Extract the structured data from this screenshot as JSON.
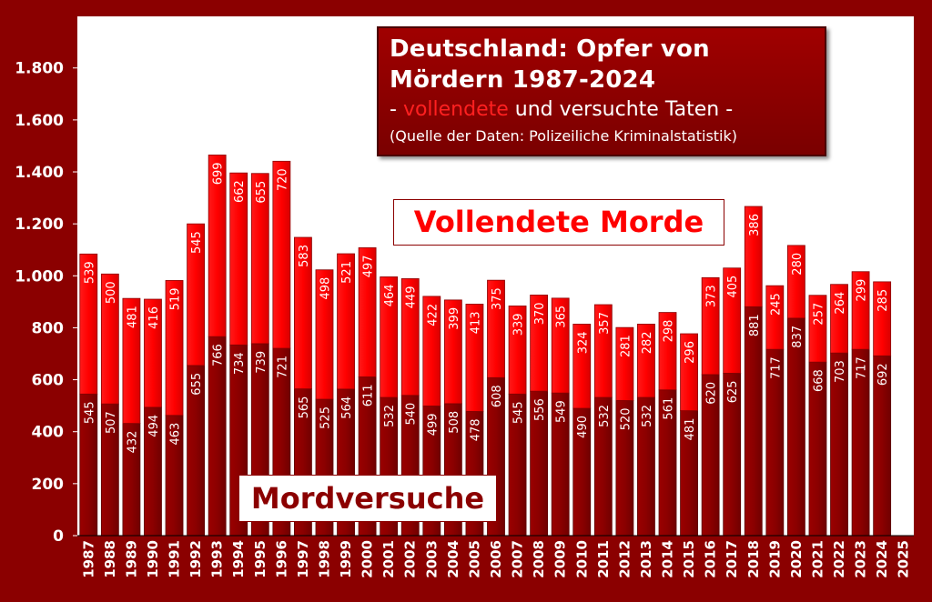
{
  "title": {
    "line1": "Deutschland: Opfer von",
    "line2": "Mördern 1987-2024",
    "sub_prefix": "- ",
    "sub_red": "vollendete",
    "sub_rest": " und versuchte Taten -",
    "source": "(Quelle der Daten:  Polizeiliche Kriminalstatistik)"
  },
  "legend": {
    "completed": "Vollendete Morde",
    "attempted": "Mordversuche"
  },
  "colors": {
    "background": "#8b0000",
    "plot_area": "#ffffff",
    "attempted": "#8b0000",
    "completed": "#ff0000"
  },
  "chart_data": {
    "type": "bar",
    "stacked": true,
    "categories": [
      "1987",
      "1988",
      "1989",
      "1990",
      "1991",
      "1992",
      "1993",
      "1994",
      "1995",
      "1996",
      "1997",
      "1998",
      "1999",
      "2000",
      "2001",
      "2002",
      "2003",
      "2004",
      "2005",
      "2006",
      "2007",
      "2008",
      "2009",
      "2010",
      "2011",
      "2012",
      "2013",
      "2014",
      "2015",
      "2016",
      "2017",
      "2018",
      "2019",
      "2020",
      "2021",
      "2022",
      "2023",
      "2024",
      "2025"
    ],
    "series": [
      {
        "name": "Mordversuche",
        "color": "#8b0000",
        "values": [
          545,
          507,
          432,
          494,
          463,
          655,
          766,
          734,
          739,
          721,
          565,
          525,
          564,
          611,
          532,
          540,
          499,
          508,
          478,
          608,
          545,
          556,
          549,
          490,
          532,
          520,
          532,
          561,
          481,
          620,
          625,
          881,
          717,
          837,
          668,
          703,
          717,
          692,
          null
        ]
      },
      {
        "name": "Vollendete Morde",
        "color": "#ff0000",
        "values": [
          539,
          500,
          481,
          416,
          519,
          545,
          699,
          662,
          655,
          720,
          583,
          498,
          521,
          497,
          464,
          449,
          422,
          399,
          413,
          375,
          339,
          370,
          365,
          324,
          357,
          281,
          282,
          298,
          296,
          373,
          405,
          386,
          245,
          280,
          257,
          264,
          299,
          285,
          null
        ]
      }
    ],
    "ylim": [
      0,
      1960
    ],
    "yticks": [
      0,
      200,
      400,
      600,
      800,
      1000,
      1200,
      1400,
      1600,
      1800
    ],
    "ytick_labels": [
      "0",
      "200",
      "400",
      "600",
      "800",
      "1.000",
      "1.200",
      "1.400",
      "1.600",
      "1.800"
    ],
    "xlabel": "",
    "ylabel": "",
    "grid": false,
    "data_labels": true
  }
}
